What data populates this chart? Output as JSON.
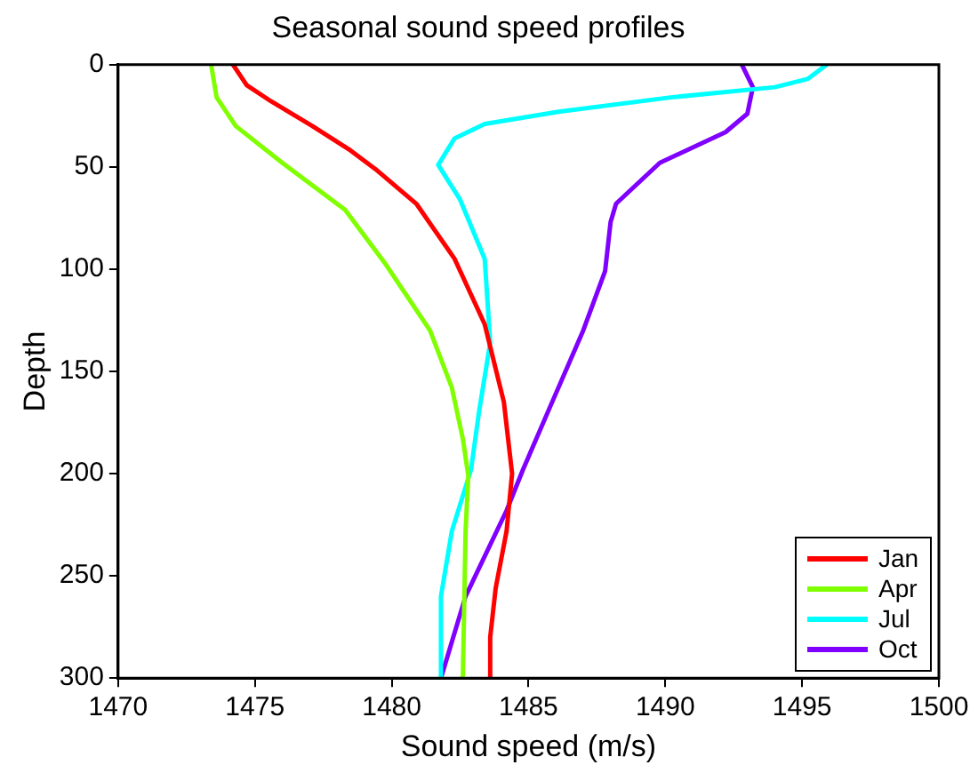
{
  "chart_data": {
    "type": "line",
    "title": "Seasonal sound speed profiles",
    "xlabel": "Sound speed (m/s)",
    "ylabel": "Depth",
    "xlim": [
      1470,
      1500
    ],
    "xticks": [
      1470,
      1475,
      1480,
      1485,
      1490,
      1495,
      1500
    ],
    "ylim": [
      300,
      0
    ],
    "yticks": [
      0,
      50,
      100,
      150,
      200,
      250,
      300
    ],
    "grid": false,
    "legend": "bottom right",
    "marker": "none",
    "line_style": "solid",
    "series": [
      {
        "name": "Jan",
        "color": "#ff0000",
        "x": [
          1474.2,
          1474.7,
          1475.6,
          1477.1,
          1478.5,
          1479.4,
          1480.9,
          1482.3,
          1483.4,
          1484.1,
          1484.4,
          1484.2,
          1483.8,
          1483.6,
          1483.6
        ],
        "values": [
          0,
          10,
          18,
          30,
          42,
          51,
          68,
          95,
          127,
          165,
          200,
          228,
          256,
          280,
          300
        ]
      },
      {
        "name": "Apr",
        "color": "#80ff00",
        "x": [
          1473.4,
          1473.6,
          1474.3,
          1476.0,
          1478.3,
          1479.8,
          1481.4,
          1482.2,
          1482.6,
          1482.8,
          1482.7,
          1482.6
        ],
        "values": [
          0,
          16,
          30,
          48,
          71,
          98,
          130,
          158,
          183,
          201,
          228,
          300
        ]
      },
      {
        "name": "Jul",
        "color": "#00ffff",
        "x": [
          1495.9,
          1495.2,
          1494.0,
          1490.2,
          1486.1,
          1483.4,
          1482.3,
          1481.7,
          1482.5,
          1483.4,
          1483.6,
          1483.2,
          1482.9,
          1482.2,
          1481.8,
          1481.8
        ],
        "values": [
          0,
          7,
          11,
          16,
          23,
          29,
          36,
          49,
          66,
          95,
          136,
          169,
          198,
          228,
          260,
          300
        ]
      },
      {
        "name": "Oct",
        "color": "#8000ff",
        "x": [
          1492.8,
          1493.2,
          1493.0,
          1492.2,
          1489.8,
          1488.2,
          1488.0,
          1487.8,
          1487.0,
          1485.8,
          1484.8,
          1484.2,
          1482.7,
          1481.8
        ],
        "values": [
          0,
          11,
          24,
          33,
          48,
          68,
          77,
          101,
          130,
          167,
          198,
          218,
          260,
          300
        ]
      }
    ]
  }
}
